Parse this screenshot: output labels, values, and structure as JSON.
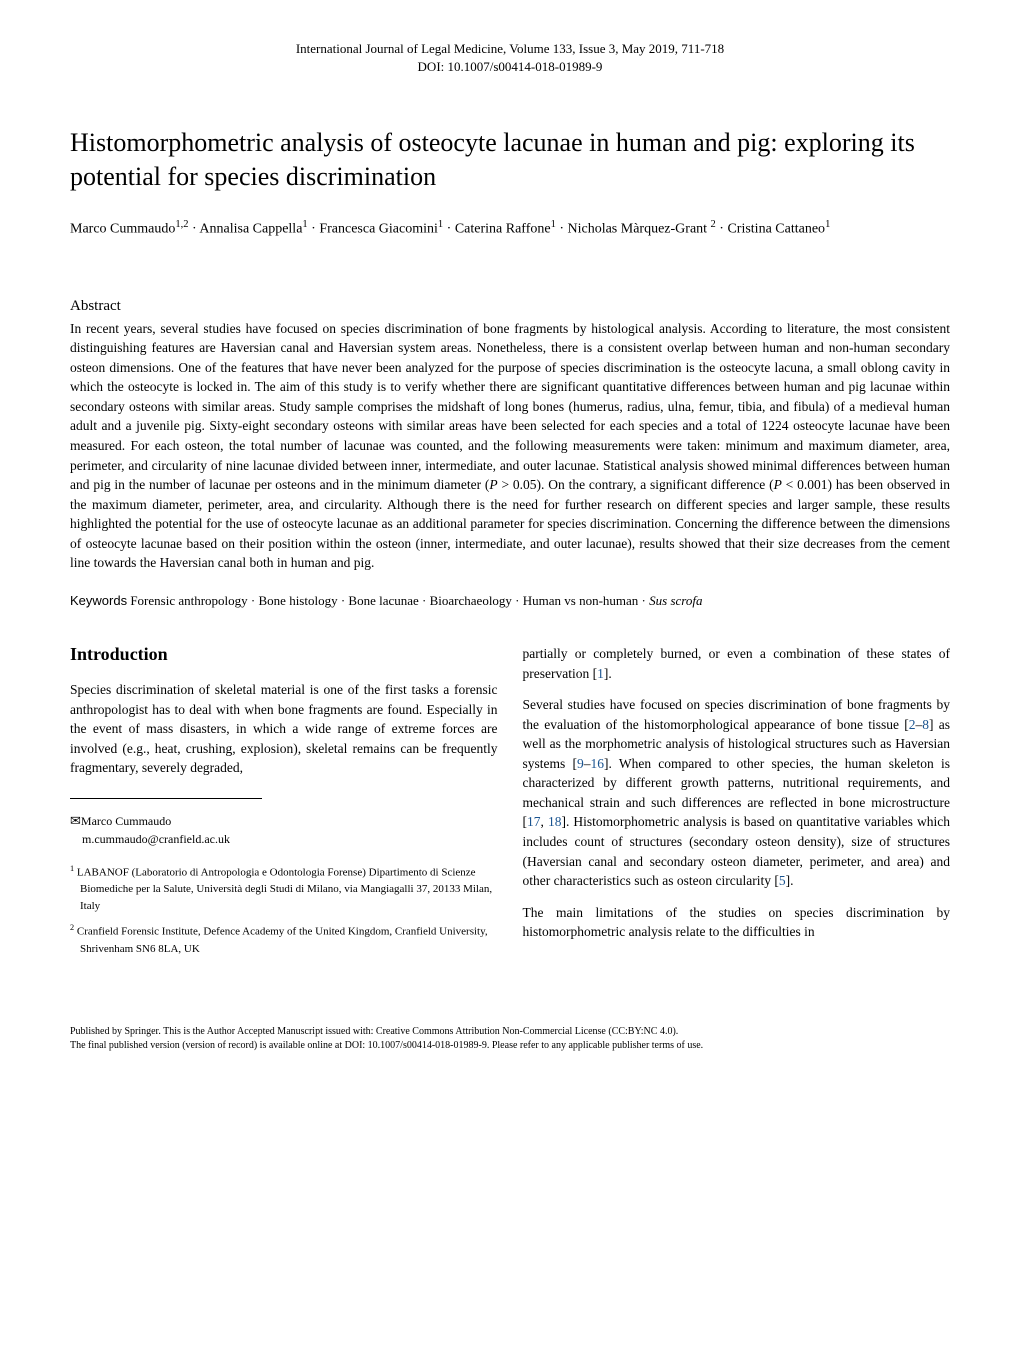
{
  "header": {
    "journal_line": "International Journal of Legal Medicine, Volume 133, Issue 3, May 2019, 711-718",
    "doi_line": "DOI: 10.1007/s00414-018-01989-9"
  },
  "title": "Histomorphometric analysis of osteocyte lacunae in human and pig: exploring its potential for species discrimination",
  "authors_html": "Marco Cummaudo<sup>1,2</sup> · Annalisa Cappella<sup>1</sup> · Francesca Giacomini<sup>1</sup> · Caterina Raffone<sup>1</sup> · Nicholas Màrquez-Grant <sup>2</sup> · Cristina Cattaneo<sup>1</sup>",
  "abstract": {
    "heading": "Abstract",
    "text": "In recent years, several studies have focused on species discrimination of bone fragments by histological analysis. According to literature, the most consistent distinguishing features are Haversian canal and Haversian system areas. Nonetheless, there is a consistent overlap between human and non-human secondary osteon dimensions. One of the features that have never been analyzed for the purpose of species discrimination is the osteocyte lacuna, a small oblong cavity in which the osteocyte is locked in. The aim of this study is to verify whether there are significant quantitative differences between human and pig lacunae within secondary osteons with similar areas. Study sample comprises the midshaft of long bones (humerus, radius, ulna, femur, tibia, and fibula) of a medieval human adult and a juvenile pig. Sixty-eight secondary osteons with similar areas have been selected for each species and a total of 1224 osteocyte lacunae have been measured. For each osteon, the total number of lacunae was counted, and the following measurements were taken: minimum and maximum diameter, area, perimeter, and circularity of nine lacunae divided between inner, intermediate, and outer lacunae. Statistical analysis showed minimal differences between human and pig in the number of lacunae per osteons and in the minimum diameter (P > 0.05). On the contrary, a significant difference (P < 0.001) has been observed in the maximum diameter, perimeter, area, and circularity. Although there is the need for further research on different species and larger sample, these results highlighted the potential for the use of osteocyte lacunae as an additional parameter for species discrimination. Concerning the difference between the dimensions of osteocyte lacunae based on their position within the osteon (inner, intermediate, and outer lacunae), results showed that their size decreases from the cement line towards the Haversian canal both in human and pig."
  },
  "keywords": {
    "label": "Keywords",
    "text": " Forensic anthropology · Bone histology · Bone lacunae · Bioarchaeology · Human vs non-human · ",
    "italic_term": "Sus scrofa"
  },
  "introduction": {
    "heading": "Introduction",
    "left_para1": "Species discrimination of skeletal material is one of the first tasks a forensic anthropologist has to deal with when bone fragments are found. Especially in the event of mass disasters, in which a wide range of extreme forces are involved (e.g., heat, crushing, explosion), skeletal remains can be frequently fragmentary, severely degraded,",
    "right_para1_pre": "partially or completely burned, or even a combination of these states of preservation [",
    "right_para1_ref1": "1",
    "right_para1_post": "].",
    "right_para2_pre": "Several studies have focused on species discrimination of bone fragments by the evaluation of the histomorphological appearance of bone tissue [",
    "right_para2_ref1": "2",
    "right_para2_dash1": "–",
    "right_para2_ref2": "8",
    "right_para2_mid1": "] as well as the morphometric analysis of histological structures such as Haversian systems [",
    "right_para2_ref3": "9",
    "right_para2_dash2": "–",
    "right_para2_ref4": "16",
    "right_para2_mid2": "]. When compared to other species, the human skeleton is characterized by different growth patterns, nutritional requirements, and mechanical strain and such differences are reflected in bone microstructure [",
    "right_para2_ref5": "17",
    "right_para2_comma": ", ",
    "right_para2_ref6": "18",
    "right_para2_mid3": "]. Histomorphometric analysis is based on quantitative variables which includes count of structures (secondary osteon density), size of structures (Haversian canal and secondary osteon diameter, perimeter, and area) and other characteristics such as osteon circularity [",
    "right_para2_ref7": "5",
    "right_para2_end": "].",
    "right_para3": "The main limitations of the studies on species discrimination by histomorphometric analysis relate to the difficulties in"
  },
  "correspondence": {
    "name": "Marco Cummaudo",
    "email": "m.cummaudo@cranfield.ac.uk"
  },
  "affiliations": {
    "aff1_sup": "1",
    "aff1_text": " LABANOF (Laboratorio di Antropologia e Odontologia Forense) Dipartimento di Scienze Biomediche per la Salute, Università degli Studi di Milano, via Mangiagalli 37, 20133 Milan, Italy",
    "aff2_sup": "2",
    "aff2_text": " Cranfield Forensic Institute, Defence Academy of the United Kingdom, Cranfield University, Shrivenham SN6 8LA, UK"
  },
  "footer": {
    "line1": "Published by Springer. This is the Author Accepted Manuscript issued with: Creative Commons Attribution Non-Commercial License (CC:BY:NC 4.0).",
    "line2": "The final published version (version of record) is available online at DOI: 10.1007/s00414-018-01989-9.  Please refer to any applicable publisher terms of use."
  }
}
